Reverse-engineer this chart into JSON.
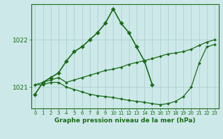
{
  "background_color": "#cce8e8",
  "line_color": "#1a6b1a",
  "grid_color": "#aacccc",
  "ylabel_ticks": [
    1021,
    1022
  ],
  "xlim": [
    -0.5,
    23.5
  ],
  "ylim": [
    1020.55,
    1022.75
  ],
  "xlabel": "Graphe pression niveau de la mer (hPa)",
  "series": [
    {
      "x": [
        0,
        1,
        2,
        3,
        4,
        5,
        6,
        7,
        8,
        9,
        10,
        11,
        12,
        13,
        14,
        15
      ],
      "y": [
        1020.85,
        1021.1,
        1021.2,
        1021.3,
        1021.55,
        1021.75,
        1021.85,
        1022.0,
        1022.15,
        1022.35,
        1022.65,
        1022.35,
        1022.15,
        1021.85,
        1021.55,
        1021.05
      ],
      "markersize": 3,
      "linewidth": 1.2
    },
    {
      "x": [
        0,
        1,
        2,
        3,
        4,
        5,
        6,
        7,
        8,
        9,
        10,
        11,
        12,
        13,
        14,
        15,
        16,
        17,
        18,
        19,
        20,
        21,
        22,
        23
      ],
      "y": [
        1021.05,
        1021.1,
        1021.15,
        1021.2,
        1021.1,
        1021.15,
        1021.2,
        1021.25,
        1021.3,
        1021.35,
        1021.38,
        1021.42,
        1021.48,
        1021.52,
        1021.56,
        1021.6,
        1021.65,
        1021.7,
        1021.72,
        1021.75,
        1021.8,
        1021.88,
        1021.95,
        1022.0
      ],
      "markersize": 2,
      "linewidth": 0.9
    },
    {
      "x": [
        0,
        1,
        2,
        3,
        4,
        5,
        6,
        7,
        8,
        9,
        10,
        11,
        12,
        13,
        14,
        15,
        16,
        17,
        18,
        19,
        20,
        21,
        22,
        23
      ],
      "y": [
        1021.05,
        1021.05,
        1021.1,
        1021.1,
        1021.0,
        1020.95,
        1020.9,
        1020.85,
        1020.82,
        1020.8,
        1020.78,
        1020.75,
        1020.72,
        1020.7,
        1020.68,
        1020.65,
        1020.63,
        1020.65,
        1020.7,
        1020.8,
        1021.0,
        1021.5,
        1021.85,
        1021.9
      ],
      "markersize": 2,
      "linewidth": 0.9
    }
  ]
}
